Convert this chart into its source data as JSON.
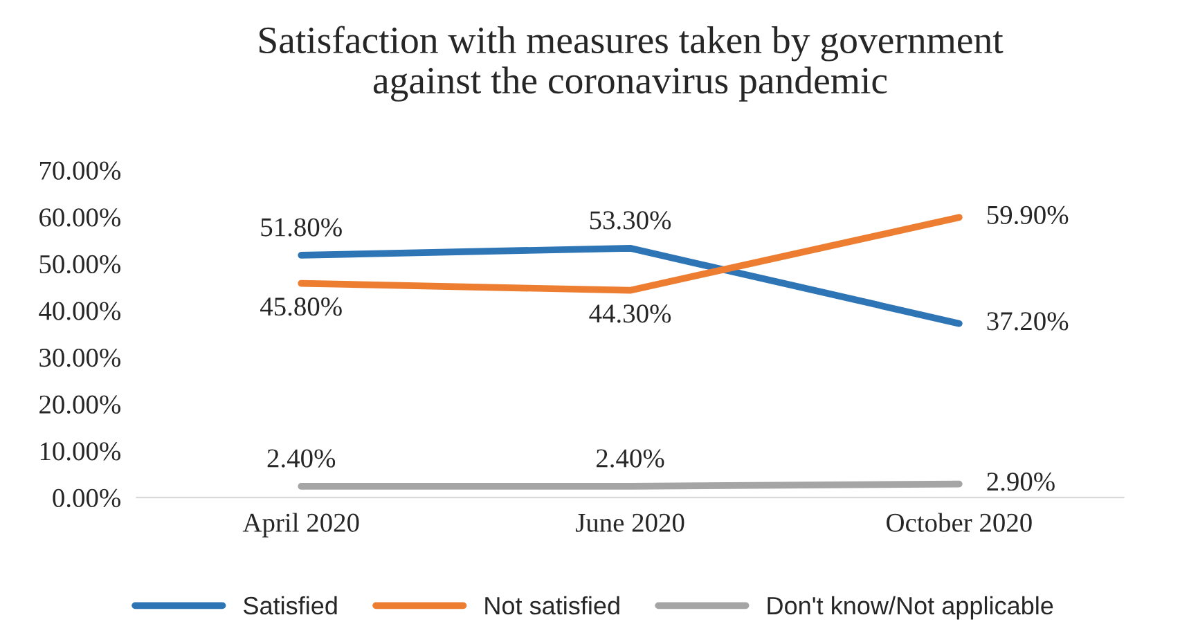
{
  "chart_data": {
    "type": "line",
    "title": "Satisfaction with measures taken by government\nagainst the coronavirus pandemic",
    "categories": [
      "April 2020",
      "June 2020",
      "October 2020"
    ],
    "series": [
      {
        "name": "Satisfied",
        "color": "#2e75b6",
        "values": [
          51.8,
          53.3,
          37.2
        ],
        "value_labels": [
          "51.80%",
          "53.30%",
          "37.20%"
        ]
      },
      {
        "name": "Not satisfied",
        "color": "#ed7d31",
        "values": [
          45.8,
          44.3,
          59.9
        ],
        "value_labels": [
          "45.80%",
          "44.30%",
          "59.90%"
        ]
      },
      {
        "name": "Don't know/Not applicable",
        "color": "#a5a5a5",
        "values": [
          2.4,
          2.4,
          2.9
        ],
        "value_labels": [
          "2.40%",
          "2.40%",
          "2.90%"
        ]
      }
    ],
    "ylim": [
      0,
      70
    ],
    "yticks": [
      {
        "value": 0,
        "label": "0.00%"
      },
      {
        "value": 10,
        "label": "10.00%"
      },
      {
        "value": 20,
        "label": "20.00%"
      },
      {
        "value": 30,
        "label": "30.00%"
      },
      {
        "value": 40,
        "label": "40.00%"
      },
      {
        "value": 50,
        "label": "50.00%"
      },
      {
        "value": 60,
        "label": "60.00%"
      },
      {
        "value": 70,
        "label": "70.00%"
      }
    ],
    "grid": false,
    "legend": "bottom",
    "marker": "none",
    "line_style": "solid"
  }
}
